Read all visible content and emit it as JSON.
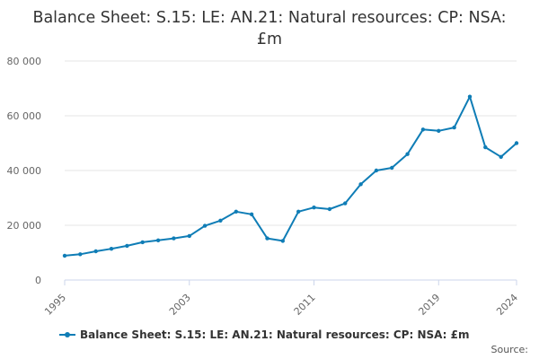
{
  "chart_data": {
    "type": "line",
    "title": "Balance Sheet: S.15: LE: AN.21: Natural resources: CP: NSA: £m",
    "xlabel": "",
    "ylabel": "",
    "x": [
      1995,
      1996,
      1997,
      1998,
      1999,
      2000,
      2001,
      2002,
      2003,
      2004,
      2005,
      2006,
      2007,
      2008,
      2009,
      2010,
      2011,
      2012,
      2013,
      2014,
      2015,
      2016,
      2017,
      2018,
      2019,
      2020,
      2021,
      2022,
      2023,
      2024
    ],
    "x_ticks": [
      "1995",
      "2003",
      "2011",
      "2019",
      "2024"
    ],
    "x_tick_values": [
      1995,
      2003,
      2011,
      2019,
      2024
    ],
    "y_ticks": [
      "0",
      "20 000",
      "40 000",
      "60 000",
      "80 000"
    ],
    "y_tick_values": [
      0,
      20000,
      40000,
      60000,
      80000
    ],
    "ylim": [
      0,
      80000
    ],
    "xlim": [
      1995,
      2024
    ],
    "grid": "horizontal",
    "legend_position": "bottom",
    "series": [
      {
        "name": "Balance Sheet: S.15: LE: AN.21: Natural resources: CP: NSA: £m",
        "color": "#0f7db6",
        "values": [
          8900,
          9400,
          10500,
          11400,
          12500,
          13800,
          14500,
          15200,
          16100,
          19800,
          21700,
          25000,
          24000,
          15200,
          14300,
          25000,
          26500,
          25900,
          28000,
          35000,
          40000,
          41000,
          46000,
          55000,
          54500,
          55700,
          67000,
          48500,
          45000,
          50000
        ]
      }
    ]
  },
  "footer": {
    "source_label": "Source:"
  }
}
